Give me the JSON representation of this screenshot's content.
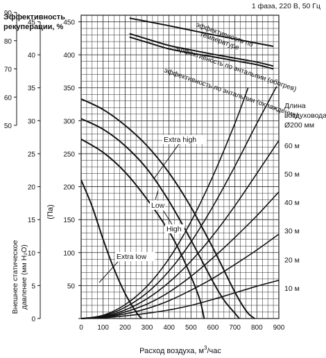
{
  "chart_data": {
    "type": "line",
    "top_right_label": "1 фаза, 220 В, 50 Гц",
    "title": "Эффективность рекуперации, %",
    "xlabel": "Расход воздуха, м³/час",
    "xlabel_parts": {
      "main": "Расход воздуха, м",
      "sup": "3",
      "tail": "/час"
    },
    "ylabel_pa": "(Па)",
    "ylabel_mm": "Внешнее статическое давление (мм H₂O)",
    "ylabel_mm_lines": [
      "Внешнее статическое",
      "давление (мм H₂O)"
    ],
    "duct_label": [
      "Длина",
      "воздуховода",
      "Ø200 мм"
    ],
    "x_ticks": [
      "0",
      "100",
      "200",
      "300",
      "400",
      "500",
      "600",
      "700",
      "800",
      "900"
    ],
    "xlim": [
      0,
      900
    ],
    "pa_ticks": [
      "0",
      "50",
      "100",
      "150",
      "200",
      "250",
      "300",
      "350",
      "400",
      "450"
    ],
    "pa_lim": [
      0,
      460
    ],
    "mm_ticks": [
      "0",
      "5",
      "10",
      "15",
      "20",
      "25",
      "30",
      "35",
      "40",
      "45"
    ],
    "eff_ticks": [
      "50",
      "60",
      "70",
      "80",
      "90"
    ],
    "fan_series": [
      {
        "name": "Extra high",
        "x": [
          0,
          100,
          200,
          300,
          400,
          500,
          600,
          700,
          755,
          790
        ],
        "y": [
          333,
          317,
          293,
          262,
          221,
          169,
          107,
          40,
          10,
          0
        ]
      },
      {
        "name": "High",
        "x": [
          0,
          100,
          200,
          300,
          400,
          500,
          600,
          650,
          700,
          720
        ],
        "y": [
          303,
          287,
          262,
          227,
          178,
          119,
          56,
          28,
          8,
          0
        ]
      },
      {
        "name": "Low",
        "x": [
          0,
          100,
          200,
          300,
          400,
          450,
          500,
          540,
          560
        ],
        "y": [
          272,
          252,
          222,
          181,
          132,
          101,
          64,
          29,
          0
        ]
      },
      {
        "name": "Extra low",
        "x": [
          0,
          50,
          100,
          150,
          200,
          250,
          275
        ],
        "y": [
          210,
          170,
          120,
          75,
          38,
          10,
          0
        ]
      }
    ],
    "duct_series": [
      {
        "name": "10 м",
        "x": [
          0,
          100,
          200,
          300,
          400,
          500,
          600,
          700,
          800,
          900
        ],
        "y": [
          0,
          1,
          4,
          8,
          13,
          20,
          29,
          39,
          49,
          58
        ]
      },
      {
        "name": "20 м",
        "x": [
          0,
          100,
          200,
          300,
          400,
          500,
          600,
          700,
          800,
          900
        ],
        "y": [
          0,
          2,
          7,
          15,
          27,
          43,
          61,
          82,
          104,
          128
        ]
      },
      {
        "name": "30 м",
        "x": [
          0,
          100,
          200,
          300,
          400,
          500,
          600,
          700,
          800,
          900
        ],
        "y": [
          0,
          2,
          10,
          22,
          40,
          64,
          92,
          123,
          156,
          192
        ]
      },
      {
        "name": "40 м",
        "x": [
          0,
          100,
          200,
          300,
          400,
          500,
          600,
          700,
          800,
          900
        ],
        "y": [
          0,
          3,
          13,
          30,
          55,
          87,
          126,
          171,
          220,
          270
        ]
      },
      {
        "name": "50 м",
        "x": [
          0,
          100,
          200,
          300,
          400,
          500,
          600,
          700,
          800,
          890
        ],
        "y": [
          0,
          4,
          17,
          39,
          72,
          116,
          170,
          231,
          296,
          352
        ]
      },
      {
        "name": "60 м",
        "x": [
          0,
          100,
          200,
          300,
          400,
          500,
          600,
          700,
          760
        ],
        "y": [
          0,
          5,
          21,
          49,
          91,
          147,
          216,
          296,
          350
        ]
      }
    ],
    "efficiency_series": [
      {
        "name": "эффективность по температуре",
        "x": [
          220,
          300,
          400,
          500,
          600,
          700,
          800,
          875
        ],
        "y": [
          88,
          86.8,
          85.3,
          83.7,
          82.1,
          80.6,
          79.1,
          78
        ]
      },
      {
        "name": "эффективность по энтальпии (обогрев)",
        "x": [
          220,
          300,
          400,
          500,
          600,
          700,
          800,
          875
        ],
        "y": [
          82.5,
          80.6,
          78.3,
          76.7,
          75.2,
          73.8,
          72.4,
          71
        ]
      },
      {
        "name": "эффективность по энтальпии (охлаждение)",
        "x": [
          220,
          300,
          400,
          500,
          600,
          700,
          800,
          875
        ],
        "y": [
          81.3,
          79.4,
          77.1,
          75.6,
          74.3,
          72.9,
          71.5,
          70
        ]
      }
    ],
    "annotations": [
      {
        "text": "Extra high",
        "series": "Extra high"
      },
      {
        "text": "High",
        "series": "High"
      },
      {
        "text": "Low",
        "series": "Low"
      },
      {
        "text": "Extra low",
        "series": "Extra low"
      }
    ],
    "grid": true
  }
}
